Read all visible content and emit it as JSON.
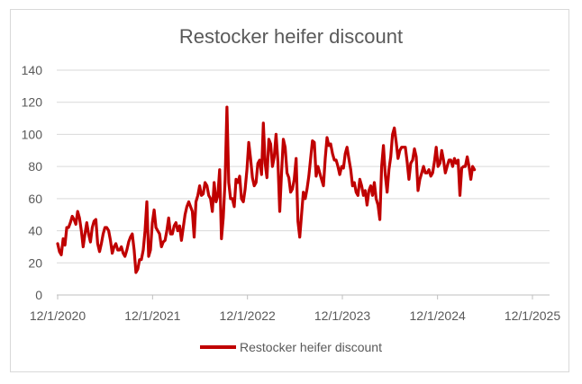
{
  "chart_data": {
    "type": "line",
    "title": "Restocker heifer discount",
    "xlabel": "",
    "ylabel": "",
    "ylim": [
      0,
      140
    ],
    "yticks": [
      0,
      20,
      40,
      60,
      80,
      100,
      120,
      140
    ],
    "xticks": [
      "12/1/2020",
      "12/1/2021",
      "12/1/2022",
      "12/1/2023",
      "12/1/2024",
      "12/1/2025"
    ],
    "grid": "horizontal",
    "legend_position": "bottom",
    "colors": {
      "series": "#c00000",
      "grid": "#d9d9d9",
      "axis": "#bfbfbf",
      "text": "#595959"
    },
    "series": [
      {
        "name": "Restocker heifer discount",
        "x_start": "2020-12-01",
        "interval_days": 7,
        "values": [
          32,
          27,
          25,
          35,
          31,
          42,
          42,
          45,
          49,
          47,
          44,
          52,
          48,
          40,
          30,
          38,
          45,
          38,
          33,
          42,
          46,
          47,
          32,
          27,
          32,
          38,
          42,
          42,
          40,
          34,
          26,
          30,
          32,
          28,
          28,
          30,
          26,
          24,
          28,
          33,
          36,
          38,
          28,
          14,
          16,
          22,
          22,
          28,
          40,
          58,
          24,
          28,
          45,
          53,
          42,
          40,
          38,
          30,
          33,
          34,
          40,
          48,
          38,
          38,
          43,
          45,
          40,
          43,
          34,
          42,
          50,
          55,
          58,
          55,
          52,
          36,
          58,
          62,
          68,
          62,
          63,
          70,
          68,
          62,
          60,
          52,
          70,
          58,
          62,
          78,
          35,
          48,
          72,
          117,
          70,
          60,
          60,
          55,
          72,
          70,
          74,
          60,
          58,
          66,
          78,
          95,
          85,
          73,
          68,
          70,
          82,
          84,
          75,
          107,
          82,
          73,
          97,
          94,
          80,
          86,
          100,
          83,
          52,
          76,
          97,
          92,
          76,
          73,
          64,
          66,
          72,
          85,
          46,
          36,
          50,
          64,
          60,
          66,
          74,
          85,
          96,
          95,
          74,
          80,
          76,
          72,
          68,
          85,
          98,
          93,
          94,
          88,
          84,
          84,
          80,
          75,
          80,
          79,
          88,
          92,
          85,
          78,
          68,
          70,
          64,
          62,
          72,
          68,
          62,
          65,
          56,
          65,
          68,
          62,
          70,
          60,
          56,
          47,
          80,
          93,
          75,
          64,
          78,
          86,
          100,
          104,
          95,
          85,
          90,
          92,
          92,
          92,
          83,
          72,
          82,
          84,
          91,
          86,
          65,
          72,
          76,
          80,
          76,
          76,
          78,
          74,
          76,
          83,
          92,
          80,
          82,
          90,
          84,
          76,
          80,
          84,
          84,
          80,
          85,
          82,
          84,
          62,
          79,
          80,
          80,
          86,
          80,
          72,
          80,
          78
        ]
      }
    ]
  }
}
